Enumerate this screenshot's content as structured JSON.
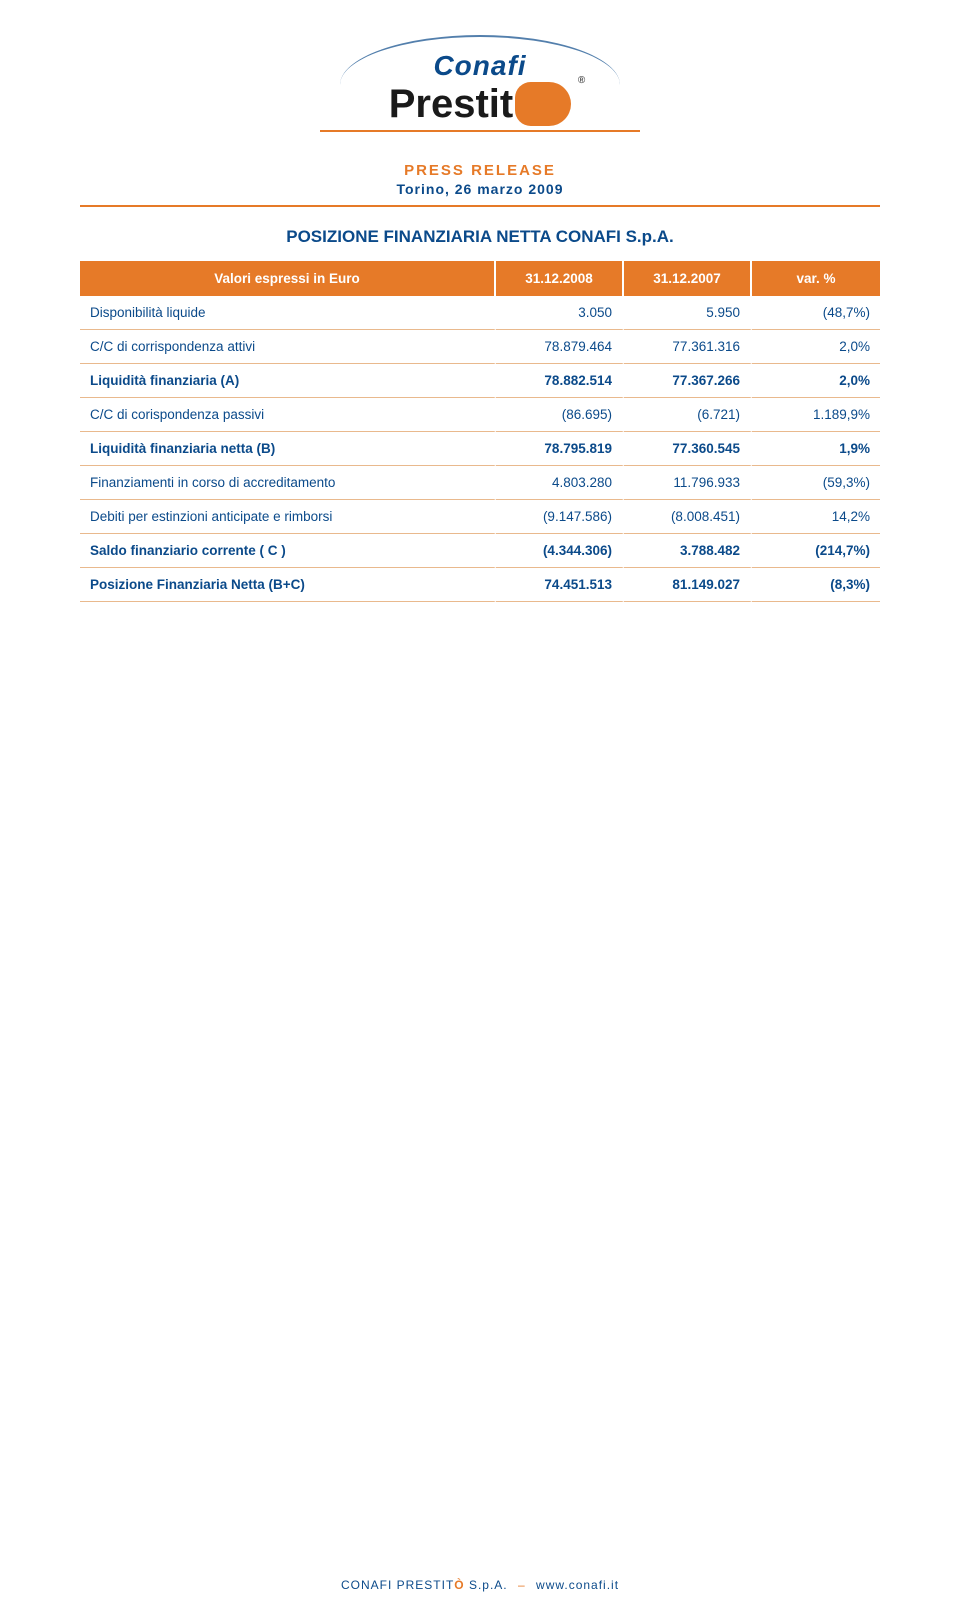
{
  "logo": {
    "line1": "Conafi",
    "line2_prefix": "Prestit"
  },
  "header": {
    "press_release": "PRESS RELEASE",
    "city_date": "Torino, 26 marzo 2009"
  },
  "table": {
    "title": "POSIZIONE FINANZIARIA NETTA CONAFI S.p.A.",
    "columns": {
      "label": "Valori espressi in Euro",
      "c1": "31.12.2008",
      "c2": "31.12.2007",
      "c3": "var. %"
    },
    "rows": [
      {
        "bold": false,
        "label": "Disponibilità liquide",
        "c1": "3.050",
        "c2": "5.950",
        "c3": "(48,7%)"
      },
      {
        "bold": false,
        "label": "C/C di corrispondenza attivi",
        "c1": "78.879.464",
        "c2": "77.361.316",
        "c3": "2,0%"
      },
      {
        "bold": true,
        "label": "Liquidità finanziaria (A)",
        "c1": "78.882.514",
        "c2": "77.367.266",
        "c3": "2,0%"
      },
      {
        "bold": false,
        "label": "C/C di corispondenza passivi",
        "c1": "(86.695)",
        "c2": "(6.721)",
        "c3": "1.189,9%"
      },
      {
        "bold": true,
        "label": "Liquidità finanziaria netta (B)",
        "c1": "78.795.819",
        "c2": "77.360.545",
        "c3": "1,9%"
      },
      {
        "bold": false,
        "label": "Finanziamenti in corso di accreditamento",
        "c1": "4.803.280",
        "c2": "11.796.933",
        "c3": "(59,3%)"
      },
      {
        "bold": false,
        "label": "Debiti per estinzioni anticipate e rimborsi",
        "c1": "(9.147.586)",
        "c2": "(8.008.451)",
        "c3": "14,2%"
      },
      {
        "bold": true,
        "label": "Saldo finanziario corrente ( C )",
        "c1": "(4.344.306)",
        "c2": "3.788.482",
        "c3": "(214,7%)"
      },
      {
        "bold": true,
        "label": "Posizione Finanziaria Netta (B+C)",
        "c1": "74.451.513",
        "c2": "81.149.027",
        "c3": "(8,3%)"
      }
    ]
  },
  "footer": {
    "company_prefix": "CONAFI PRESTIT",
    "company_o": "Ò",
    "company_suffix": " S.p.A.",
    "url": "www.conafi.it"
  },
  "colors": {
    "orange": "#e67a28",
    "navy": "#0b4a8a",
    "row_border": "#e9b98d",
    "white": "#ffffff",
    "black": "#1a1a1a"
  },
  "typography": {
    "base_font": "Arial",
    "title_fontsize": 17,
    "header_fontsize": 15,
    "body_fontsize": 13.5,
    "footer_fontsize": 12
  }
}
